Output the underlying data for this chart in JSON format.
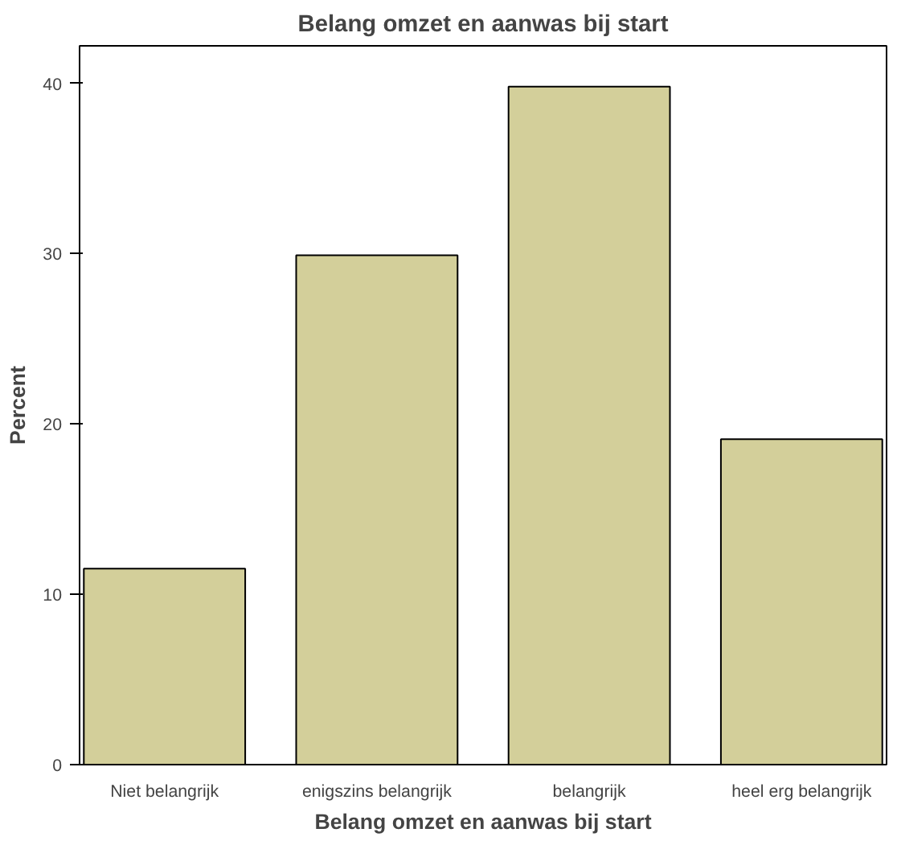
{
  "chart_data": {
    "type": "bar",
    "title": "Belang omzet en aanwas bij start",
    "xlabel": "Belang omzet en aanwas bij start",
    "ylabel": "Percent",
    "categories": [
      "Niet belangrijk",
      "enigszins belangrijk",
      "belangrijk",
      "heel erg belangrijk"
    ],
    "values": [
      11.5,
      29.9,
      39.8,
      19.1
    ],
    "color": "#d3cf9a",
    "ylim": [
      0,
      42.2
    ],
    "yticks": [
      0,
      10,
      20,
      30,
      40
    ],
    "grid": false
  }
}
